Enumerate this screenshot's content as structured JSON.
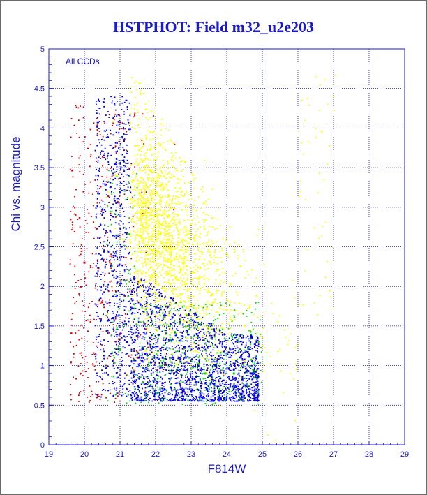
{
  "chart_data": {
    "type": "scatter",
    "title": "HSTPHOT: Field m32_u2e203",
    "xlabel": "F814W",
    "ylabel": "Chi vs. magnitude",
    "annotation": "All CCDs",
    "xlim": [
      19,
      29
    ],
    "ylim": [
      0,
      5
    ],
    "xticks": [
      "19",
      "20",
      "21",
      "22",
      "23",
      "24",
      "25",
      "26",
      "27",
      "28",
      "29"
    ],
    "yticks": [
      "0",
      "0.5",
      "1",
      "1.5",
      "2",
      "2.5",
      "3",
      "3.5",
      "4",
      "4.5",
      "5"
    ],
    "grid": true,
    "colors": {
      "axis": "#1a1acc",
      "yellow": "#ffff00",
      "blue": "#0000ee",
      "green": "#00dd00",
      "red": "#dd0000"
    },
    "series": [
      {
        "color": "#ffff00",
        "x": [
          20.9,
          21.3,
          21.6,
          22.0,
          22.4,
          22.8,
          23.2,
          23.6,
          24.0,
          24.5
        ],
        "y": [
          3.4,
          3.1,
          2.9,
          2.7,
          2.5,
          2.3,
          2.1,
          1.9,
          1.7,
          1.5
        ]
      },
      {
        "color": "#0000ee",
        "x": [
          20.8,
          21.2,
          21.7,
          22.2,
          22.7,
          23.2,
          23.7,
          24.2,
          24.7
        ],
        "y": [
          1.6,
          1.3,
          1.15,
          1.1,
          1.05,
          1.0,
          1.0,
          0.95,
          0.9
        ]
      },
      {
        "color": "#00dd00",
        "x": [
          21.0,
          21.8,
          22.6,
          23.4,
          24.2,
          24.8
        ],
        "y": [
          1.2,
          1.0,
          0.95,
          0.9,
          0.9,
          0.85
        ]
      },
      {
        "color": "#dd0000",
        "x": [
          20.0,
          20.5,
          21.0,
          21.5
        ],
        "y": [
          2.3,
          1.8,
          1.4,
          1.1
        ]
      }
    ]
  }
}
